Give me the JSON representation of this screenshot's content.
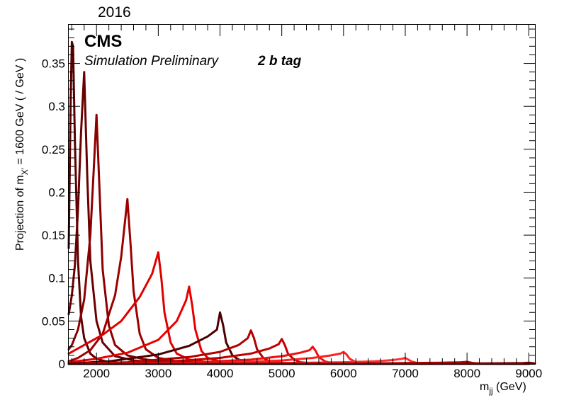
{
  "header": {
    "year": "2016",
    "experiment": "CMS",
    "status": "Simulation Preliminary",
    "category": "2 b tag"
  },
  "chart_data": {
    "type": "line",
    "xlabel_main": "m",
    "xlabel_sub": "jj",
    "xlabel_unit": " (GeV)",
    "ylabel_main": "Projection of m",
    "ylabel_sub": "X'",
    "ylabel_rest": " = 1600 GeV ( / GeV )",
    "xlim": [
      1550,
      9100
    ],
    "ylim": [
      0,
      0.395
    ],
    "xticks": [
      2000,
      3000,
      4000,
      5000,
      6000,
      7000,
      8000,
      9000
    ],
    "xtick_labels": [
      "2000",
      "3000",
      "4000",
      "5000",
      "6000",
      "7000",
      "8000",
      "9000"
    ],
    "yticks": [
      0,
      0.05,
      0.1,
      0.15,
      0.2,
      0.25,
      0.3,
      0.35
    ],
    "ytick_labels": [
      "0",
      "0.05",
      "0.1",
      "0.15",
      "0.2",
      "0.25",
      "0.3",
      "0.35"
    ],
    "grid": false,
    "series": [
      {
        "color": "#5a0000",
        "x": [
          1550,
          1580,
          1600,
          1620,
          1650,
          1700,
          1750,
          1800,
          1900,
          2000,
          2200,
          2500,
          3000,
          4000,
          5000,
          9000
        ],
        "y": [
          0.135,
          0.3,
          0.375,
          0.37,
          0.26,
          0.12,
          0.055,
          0.03,
          0.012,
          0.006,
          0.002,
          0.001,
          0.0005,
          0.0002,
          0.0001,
          0
        ]
      },
      {
        "color": "#6b0000",
        "x": [
          1550,
          1600,
          1650,
          1700,
          1750,
          1800,
          1850,
          1900,
          2000,
          2100,
          2300,
          2600,
          3000,
          4000,
          6000,
          9000
        ],
        "y": [
          0.058,
          0.08,
          0.115,
          0.18,
          0.27,
          0.34,
          0.22,
          0.12,
          0.05,
          0.025,
          0.009,
          0.004,
          0.002,
          0.0006,
          0.0001,
          0
        ]
      },
      {
        "color": "#8b0000",
        "x": [
          1550,
          1600,
          1700,
          1800,
          1900,
          1950,
          2000,
          2050,
          2100,
          2200,
          2300,
          2500,
          2800,
          3200,
          4000,
          6000,
          9000
        ],
        "y": [
          0.017,
          0.022,
          0.04,
          0.075,
          0.15,
          0.22,
          0.29,
          0.2,
          0.11,
          0.045,
          0.022,
          0.01,
          0.005,
          0.0025,
          0.0008,
          0.0001,
          0
        ]
      },
      {
        "color": "#9e0000",
        "x": [
          1550,
          1700,
          1900,
          2100,
          2300,
          2400,
          2500,
          2550,
          2600,
          2700,
          2800,
          3000,
          3300,
          4000,
          5500,
          9000
        ],
        "y": [
          0.003,
          0.007,
          0.016,
          0.035,
          0.08,
          0.125,
          0.192,
          0.14,
          0.085,
          0.035,
          0.017,
          0.007,
          0.003,
          0.001,
          0.0002,
          0
        ]
      },
      {
        "color": "#e00000",
        "x": [
          1550,
          1800,
          2100,
          2400,
          2700,
          2900,
          3000,
          3050,
          3100,
          3200,
          3300,
          3500,
          3800,
          4500,
          6000,
          9000
        ],
        "y": [
          0.012,
          0.022,
          0.034,
          0.05,
          0.078,
          0.105,
          0.13,
          0.1,
          0.06,
          0.025,
          0.012,
          0.005,
          0.002,
          0.0006,
          0.0001,
          0
        ]
      },
      {
        "color": "#e80000",
        "x": [
          1550,
          2000,
          2500,
          3000,
          3300,
          3450,
          3500,
          3550,
          3600,
          3700,
          3800,
          4000,
          4500,
          6000,
          9000
        ],
        "y": [
          0.002,
          0.006,
          0.013,
          0.028,
          0.05,
          0.074,
          0.09,
          0.068,
          0.04,
          0.015,
          0.007,
          0.003,
          0.001,
          0.0001,
          0
        ]
      },
      {
        "color": "#4a0000",
        "x": [
          1550,
          2200,
          3000,
          3500,
          3800,
          3950,
          4000,
          4050,
          4100,
          4200,
          4300,
          4500,
          5000,
          6500,
          9000
        ],
        "y": [
          0.0005,
          0.003,
          0.011,
          0.021,
          0.032,
          0.04,
          0.06,
          0.045,
          0.025,
          0.01,
          0.005,
          0.002,
          0.0007,
          0.0001,
          0
        ]
      },
      {
        "color": "#b00000",
        "x": [
          1550,
          2500,
          3500,
          4000,
          4300,
          4450,
          4500,
          4550,
          4600,
          4700,
          4800,
          5000,
          5500,
          7000,
          9000
        ],
        "y": [
          0.0001,
          0.002,
          0.008,
          0.014,
          0.022,
          0.03,
          0.039,
          0.03,
          0.017,
          0.007,
          0.003,
          0.0012,
          0.0004,
          0.0001,
          0
        ]
      },
      {
        "color": "#c00000",
        "x": [
          1550,
          3000,
          4000,
          4500,
          4800,
          4950,
          5000,
          5050,
          5100,
          5200,
          5300,
          5500,
          6000,
          7500,
          9000
        ],
        "y": [
          0.0001,
          0.002,
          0.007,
          0.012,
          0.018,
          0.023,
          0.029,
          0.022,
          0.012,
          0.005,
          0.002,
          0.0008,
          0.0002,
          0.0001,
          0
        ]
      },
      {
        "color": "#ee1010",
        "x": [
          1550,
          3500,
          4500,
          5000,
          5300,
          5450,
          5500,
          5550,
          5600,
          5700,
          5800,
          6000,
          6500,
          8000,
          9000
        ],
        "y": [
          0,
          0.0015,
          0.005,
          0.009,
          0.013,
          0.016,
          0.02,
          0.015,
          0.008,
          0.003,
          0.0012,
          0.0005,
          0.0001,
          0,
          0
        ]
      },
      {
        "color": "#ff2020",
        "x": [
          1550,
          4000,
          5000,
          5500,
          5800,
          5950,
          6000,
          6050,
          6100,
          6200,
          6300,
          6500,
          7000,
          9000
        ],
        "y": [
          0,
          0.001,
          0.004,
          0.007,
          0.01,
          0.012,
          0.014,
          0.011,
          0.006,
          0.002,
          0.0008,
          0.0003,
          0.0001,
          0
        ]
      },
      {
        "color": "#ff3030",
        "x": [
          1550,
          5000,
          6000,
          6500,
          6800,
          6950,
          7000,
          7050,
          7100,
          7200,
          7500,
          9000
        ],
        "y": [
          0,
          0.001,
          0.002,
          0.003,
          0.0045,
          0.006,
          0.007,
          0.005,
          0.003,
          0.001,
          0.0002,
          0
        ]
      },
      {
        "color": "#d00000",
        "x": [
          1550,
          6000,
          7000,
          7600,
          7900,
          8000,
          8050,
          8100,
          8200,
          8500,
          9000
        ],
        "y": [
          0,
          0.0004,
          0.001,
          0.0015,
          0.002,
          0.0025,
          0.0018,
          0.001,
          0.0004,
          0.0001,
          0
        ]
      },
      {
        "color": "#800000",
        "x": [
          1550,
          7000,
          8000,
          8600,
          8900,
          9000,
          9050,
          9100
        ],
        "y": [
          0,
          0.0002,
          0.0005,
          0.0008,
          0.0011,
          0.0014,
          0.001,
          0.0006
        ]
      }
    ]
  }
}
